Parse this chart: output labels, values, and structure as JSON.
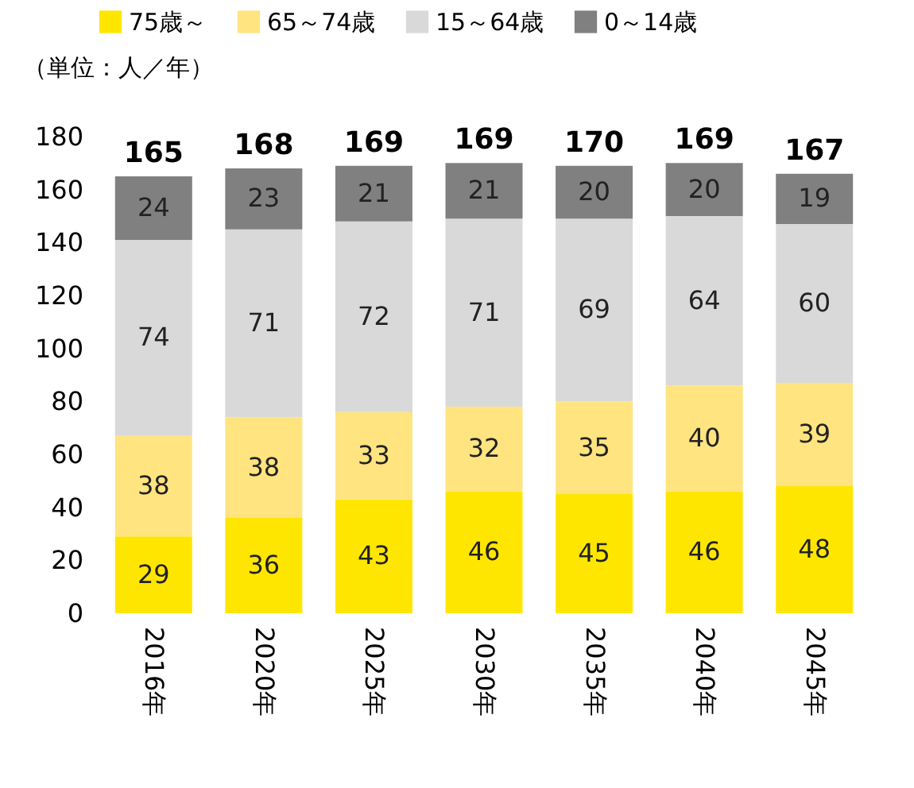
{
  "chart_data": {
    "type": "bar",
    "stacked": true,
    "ylabel": "（単位：人／年）",
    "categories": [
      "2016年",
      "2020年",
      "2025年",
      "2030年",
      "2035年",
      "2040年",
      "2045年"
    ],
    "series": [
      {
        "name": "75歳～",
        "color": "#ffe600",
        "values": [
          29,
          36,
          43,
          46,
          45,
          46,
          48
        ]
      },
      {
        "name": "65～74歳",
        "color": "#ffe480",
        "values": [
          38,
          38,
          33,
          32,
          35,
          40,
          39
        ]
      },
      {
        "name": "15～64歳",
        "color": "#d9d9d9",
        "values": [
          74,
          71,
          72,
          71,
          69,
          64,
          60
        ]
      },
      {
        "name": "0～14歳",
        "color": "#808080",
        "values": [
          24,
          23,
          21,
          21,
          20,
          20,
          19
        ]
      }
    ],
    "totals": [
      "165",
      "168",
      "169",
      "169",
      "170",
      "169",
      "167"
    ],
    "data_labels": true,
    "ylim": [
      0,
      180
    ],
    "yticks": [
      0,
      20,
      40,
      60,
      80,
      100,
      120,
      140,
      160,
      180
    ],
    "grid": false,
    "legend": "top"
  }
}
